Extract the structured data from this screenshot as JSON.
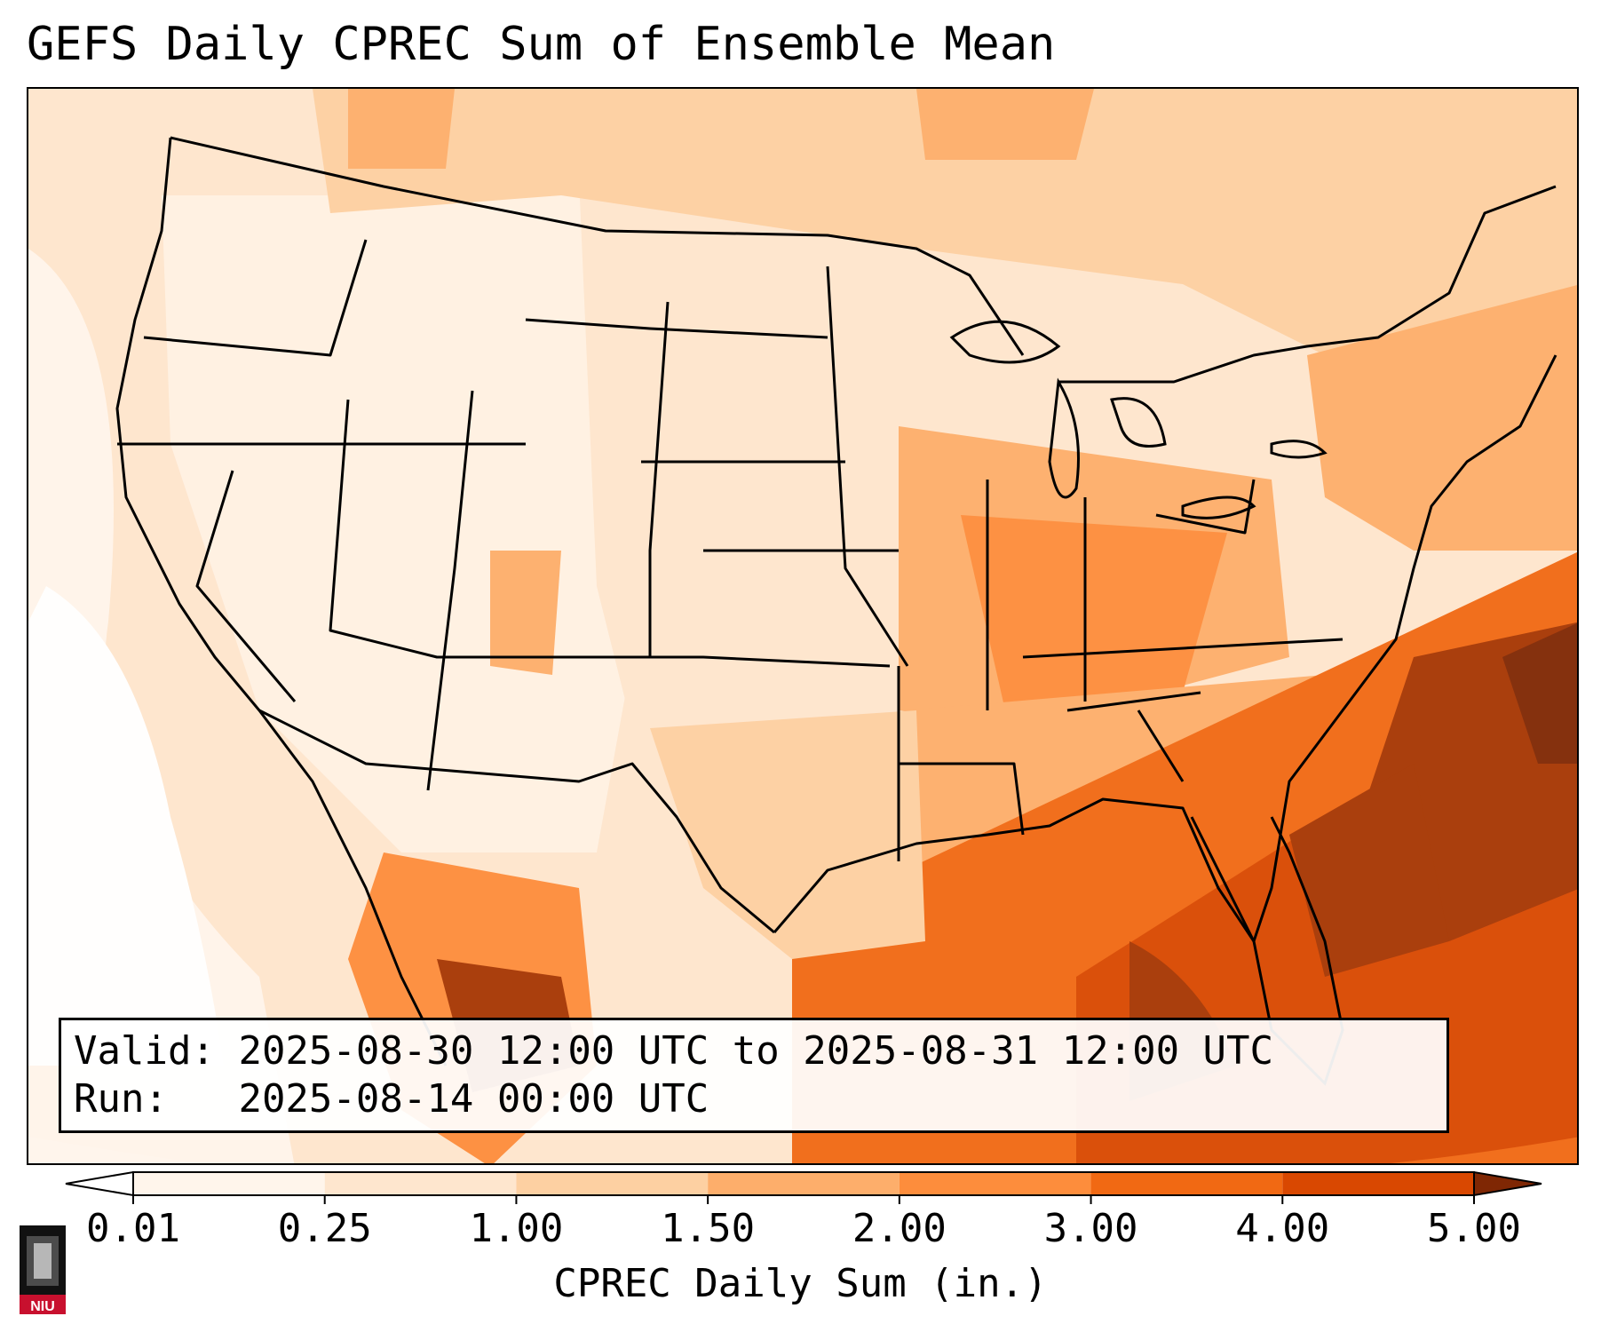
{
  "title": "GEFS Daily CPREC Sum of Ensemble Mean",
  "info": {
    "valid_label": "Valid:",
    "valid_value": "2025-08-30 12:00 UTC to 2025-08-31 12:00 UTC",
    "run_label": "Run:",
    "run_value": "2025-08-14 00:00 UTC"
  },
  "colorbar": {
    "label": "CPREC Daily Sum (in.)",
    "ticks": [
      "0.01",
      "0.25",
      "1.00",
      "1.50",
      "2.00",
      "3.00",
      "4.00",
      "5.00"
    ],
    "colors": [
      "#fff5eb",
      "#fee6ce",
      "#fdd0a2",
      "#fdae6b",
      "#fd8d3c",
      "#f16913",
      "#d94801",
      "#a63603"
    ],
    "over_color": "#7f2704",
    "under_color": "#ffffff"
  },
  "logo": {
    "text": "NIU",
    "icon": "niu-logo-icon"
  }
}
